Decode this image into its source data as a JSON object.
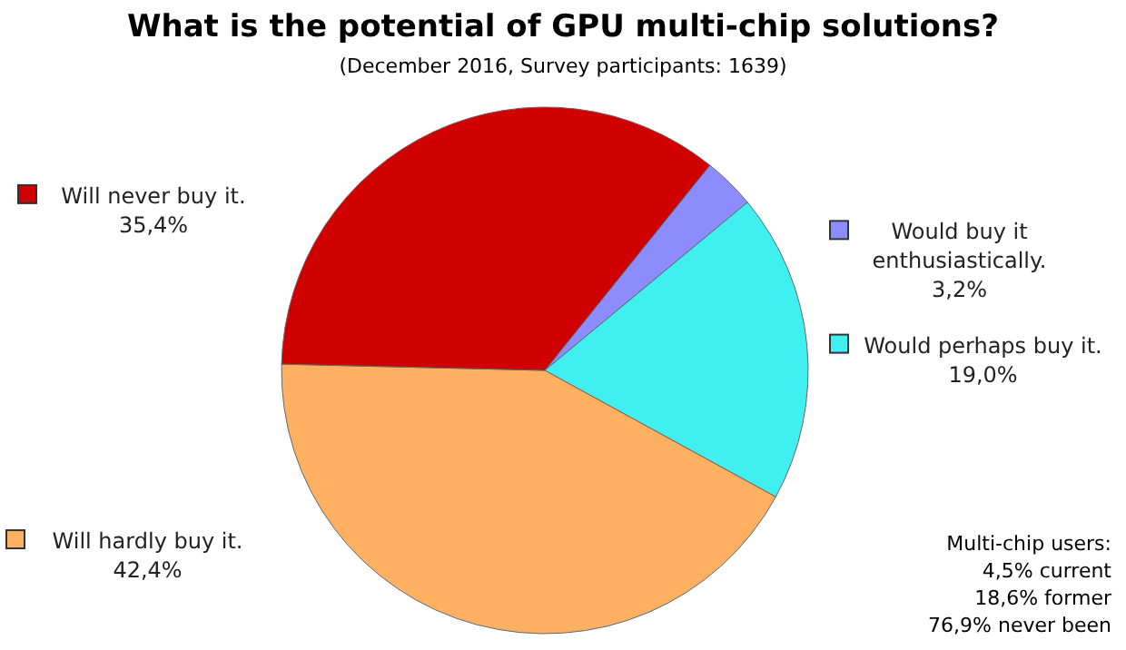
{
  "chart_data": {
    "type": "pie",
    "title": "What is the potential of GPU multi-chip solutions?",
    "subtitle": "(December 2016, Survey participants: 1639)",
    "categories": [
      "Would buy it enthusiastically.",
      "Would perhaps buy it.",
      "Will hardly buy it.",
      "Will never buy it."
    ],
    "values": [
      3.2,
      19.0,
      42.4,
      35.4
    ],
    "value_labels": [
      "3,2%",
      "19,0%",
      "42,4%",
      "35,4%"
    ],
    "colors": [
      "#8c8cff",
      "#40f0f0",
      "#ffb060",
      "#d00000"
    ],
    "legend": "left",
    "annotations": [
      "Multi-chip users:",
      "4,5% current",
      "18,6% former",
      "76,9% never been"
    ]
  }
}
